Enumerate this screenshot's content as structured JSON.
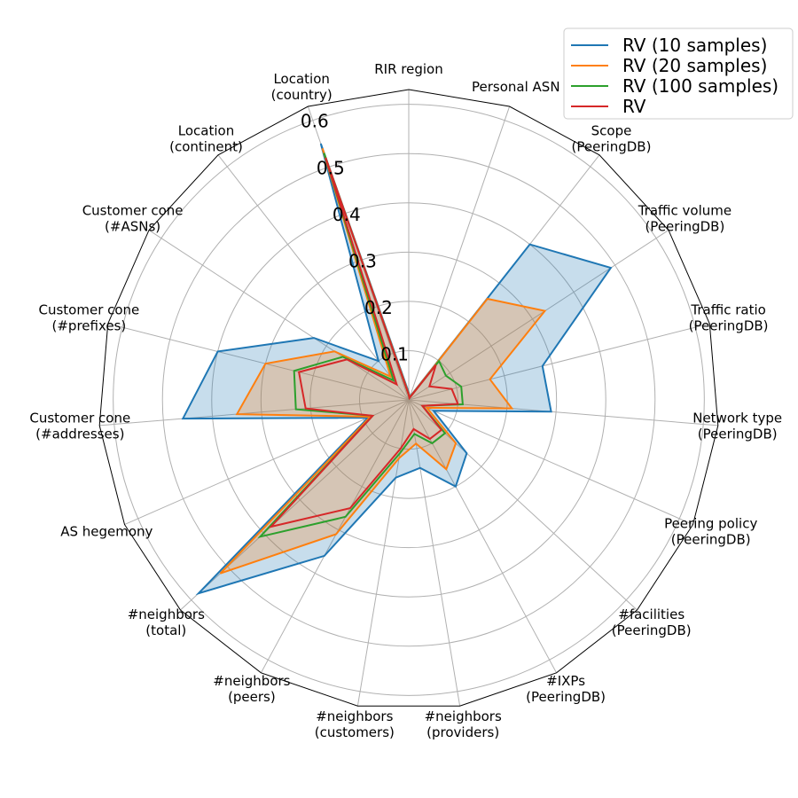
{
  "chart_data": {
    "type": "radar",
    "axes": [
      [
        "RIR region"
      ],
      [
        "Personal ASN"
      ],
      [
        "Scope",
        "(PeeringDB)"
      ],
      [
        "Traffic volume",
        "(PeeringDB)"
      ],
      [
        "Traffic ratio",
        "(PeeringDB)"
      ],
      [
        "Network type",
        "(PeeringDB)"
      ],
      [
        "Peering policy",
        "(PeeringDB)"
      ],
      [
        "#facilities",
        "(PeeringDB)"
      ],
      [
        "#IXPs",
        "(PeeringDB)"
      ],
      [
        "#neighbors",
        "(providers)"
      ],
      [
        "#neighbors",
        "(customers)"
      ],
      [
        "#neighbors",
        "(peers)"
      ],
      [
        "#neighbors",
        "(total)"
      ],
      [
        "AS hegemony"
      ],
      [
        "Customer cone",
        "(#addresses)"
      ],
      [
        "Customer cone",
        "(#prefixes)"
      ],
      [
        "Customer cone",
        "(#ASNs)"
      ],
      [
        "Location",
        "(continent)"
      ],
      [
        "Location",
        "(country)"
      ]
    ],
    "rticks": [
      "0.1",
      "0.2",
      "0.3",
      "0.4",
      "0.5",
      "0.6"
    ],
    "rtick_values": [
      0.1,
      0.2,
      0.3,
      0.4,
      0.5,
      0.6
    ],
    "rmax": 0.63,
    "legend_position": "top-right",
    "series": [
      {
        "name": "RV (10 samples)",
        "color": "#1f77b4",
        "fill": true,
        "values": [
          0.015,
          0.006,
          0.4,
          0.49,
          0.28,
          0.29,
          0.055,
          0.16,
          0.2,
          0.14,
          0.16,
          0.36,
          0.58,
          0.09,
          0.46,
          0.4,
          0.23,
          0.1,
          0.55
        ]
      },
      {
        "name": "RV (20 samples)",
        "color": "#ff7f0e",
        "fill": true,
        "values": [
          0.012,
          0.005,
          0.26,
          0.33,
          0.17,
          0.21,
          0.04,
          0.13,
          0.16,
          0.09,
          0.12,
          0.31,
          0.52,
          0.085,
          0.35,
          0.3,
          0.18,
          0.06,
          0.54
        ]
      },
      {
        "name": "RV (100 samples)",
        "color": "#2ca02c",
        "fill": false,
        "values": [
          0.01,
          0.004,
          0.1,
          0.09,
          0.11,
          0.11,
          0.03,
          0.1,
          0.1,
          0.07,
          0.11,
          0.27,
          0.41,
          0.08,
          0.23,
          0.24,
          0.16,
          0.05,
          0.53
        ]
      },
      {
        "name": "RV",
        "color": "#d62728",
        "fill": false,
        "values": [
          0.01,
          0.004,
          0.09,
          0.05,
          0.09,
          0.1,
          0.03,
          0.09,
          0.09,
          0.06,
          0.1,
          0.25,
          0.38,
          0.08,
          0.21,
          0.23,
          0.15,
          0.04,
          0.52
        ]
      }
    ]
  }
}
